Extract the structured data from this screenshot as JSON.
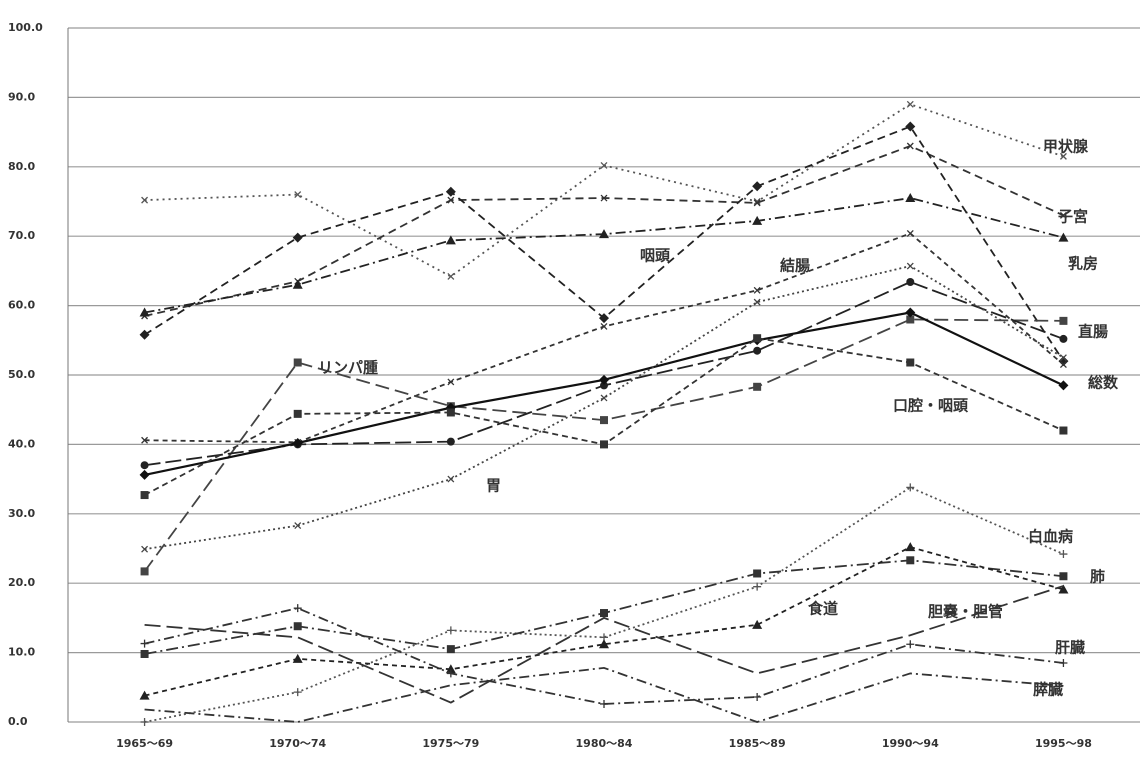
{
  "chart_data": {
    "type": "line",
    "categories": [
      "1965～69",
      "1970～74",
      "1975～79",
      "1980～84",
      "1985～89",
      "1990～94",
      "1995～98"
    ],
    "ylim": [
      0,
      100
    ],
    "yticks": [
      {
        "value": 0,
        "label": "0.0"
      },
      {
        "value": 10,
        "label": "10.0"
      },
      {
        "value": 20,
        "label": "20.0"
      },
      {
        "value": 30,
        "label": "30.0"
      },
      {
        "value": 40,
        "label": "40.0"
      },
      {
        "value": 50,
        "label": "50.0"
      },
      {
        "value": 60,
        "label": "60.0"
      },
      {
        "value": 70,
        "label": "70.0"
      },
      {
        "value": 80,
        "label": "80.0"
      },
      {
        "value": 90,
        "label": "90.0"
      },
      {
        "value": 100,
        "label": "100.0"
      }
    ],
    "grid": true,
    "series": [
      {
        "name": "甲状腺",
        "color": "#555555",
        "values": [
          75.2,
          76,
          64.2,
          80.2,
          75,
          89,
          81.5
        ]
      },
      {
        "name": "子宮",
        "color": "#333333",
        "values": [
          58.5,
          63.5,
          75.2,
          75.5,
          74.8,
          83,
          73
        ]
      },
      {
        "name": "乳房",
        "color": "#222222",
        "values": [
          59,
          63,
          69.4,
          70.3,
          72.2,
          75.5,
          69.8
        ]
      },
      {
        "name": "咽頭",
        "color": "#222222",
        "values": [
          55.8,
          69.8,
          76.4,
          58.2,
          77.2,
          85.8,
          52
        ]
      },
      {
        "name": "結腸",
        "color": "#333333",
        "values": [
          40.6,
          40.3,
          49,
          57,
          62.2,
          70.4,
          51.5
        ]
      },
      {
        "name": "リンパ腫",
        "color": "#444444",
        "values": [
          21.7,
          51.8,
          45.5,
          43.5,
          48.3,
          58,
          57.8
        ]
      },
      {
        "name": "直腸",
        "color": "#222222",
        "values": [
          37,
          40,
          40.4,
          48.5,
          53.5,
          63.4,
          55.2
        ]
      },
      {
        "name": "総数",
        "color": "#111111",
        "values": [
          35.6,
          40.2,
          45.3,
          49.3,
          55,
          59,
          48.5
        ]
      },
      {
        "name": "口腔・咽頭",
        "color": "#333333",
        "values": [
          32.7,
          44.4,
          44.6,
          40,
          55.3,
          51.8,
          42
        ]
      },
      {
        "name": "胃",
        "color": "#444444",
        "values": [
          24.9,
          28.3,
          35,
          46.7,
          60.5,
          65.7,
          52.5
        ]
      },
      {
        "name": "白血病",
        "color": "#555555",
        "values": [
          0,
          4.3,
          13.2,
          12.2,
          19.5,
          33.8,
          24.2
        ]
      },
      {
        "name": "肺",
        "color": "#333333",
        "values": [
          9.8,
          13.8,
          10.5,
          15.7,
          21.4,
          23.3,
          21
        ]
      },
      {
        "name": "食道",
        "color": "#222222",
        "values": [
          3.8,
          9.1,
          7.6,
          11.2,
          14,
          25.2,
          19.1
        ]
      },
      {
        "name": "胆嚢・胆管",
        "color": "#333333",
        "values": [
          14,
          12.2,
          2.8,
          15,
          7,
          12.5,
          19.6
        ]
      },
      {
        "name": "肝臓",
        "color": "#333333",
        "values": [
          11.3,
          16.4,
          7,
          2.6,
          3.6,
          11.2,
          8.5
        ]
      },
      {
        "name": "膵臓",
        "color": "#333333",
        "values": [
          1.8,
          0,
          5.3,
          7.8,
          0,
          7,
          5.2
        ]
      }
    ]
  }
}
